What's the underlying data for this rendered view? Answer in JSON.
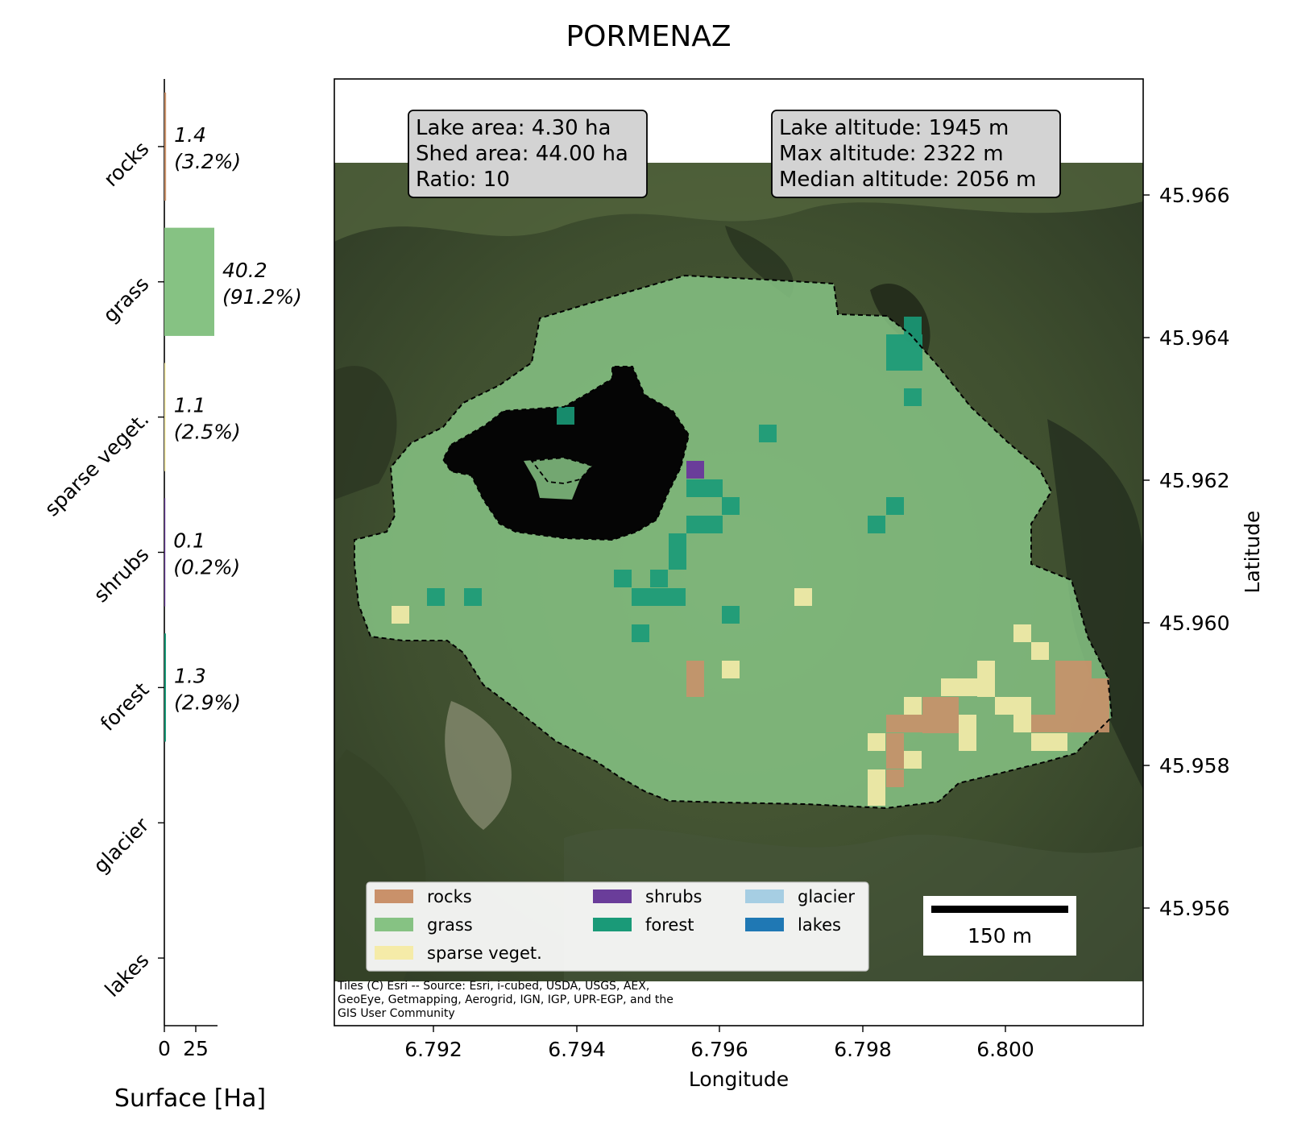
{
  "title": "PORMENAZ",
  "bar_panel": {
    "xlabel": "Surface [Ha]",
    "xticks": [
      "0",
      "25"
    ],
    "categories": [
      "rocks",
      "grass",
      "sparse veget.",
      "shrubs",
      "forest",
      "glacier",
      "lakes"
    ],
    "value_labels": [
      {
        "value": "1.4",
        "pct": "(3.2%)"
      },
      {
        "value": "40.2",
        "pct": "(91.2%)"
      },
      {
        "value": "1.1",
        "pct": "(2.5%)"
      },
      {
        "value": "0.1",
        "pct": "(0.2%)"
      },
      {
        "value": "1.3",
        "pct": "(2.9%)"
      },
      {
        "value": "",
        "pct": ""
      },
      {
        "value": "",
        "pct": ""
      }
    ]
  },
  "chart_data": {
    "type": "bar",
    "orientation": "horizontal",
    "categories": [
      "rocks",
      "grass",
      "sparse veget.",
      "shrubs",
      "forest",
      "glacier",
      "lakes"
    ],
    "values": [
      1.4,
      40.2,
      1.1,
      0.1,
      1.3,
      0,
      0
    ],
    "percentages": [
      3.2,
      91.2,
      2.5,
      0.2,
      2.9,
      0,
      0
    ],
    "colors": [
      "#c9916a",
      "#86c283",
      "#f5eba8",
      "#6a3d9a",
      "#1a9a78",
      "#a6cee3",
      "#1f78b4"
    ],
    "xlabel": "Surface [Ha]",
    "xlim": [
      0,
      40.2
    ]
  },
  "map": {
    "xlabel": "Longitude",
    "ylabel": "Latitude",
    "lon_ticks": [
      "6.792",
      "6.794",
      "6.796",
      "6.798",
      "6.800"
    ],
    "lat_ticks": [
      "45.966",
      "45.964",
      "45.962",
      "45.960",
      "45.958",
      "45.956"
    ],
    "info_left": [
      "Lake area: 4.30 ha",
      "Shed area: 44.00 ha",
      "Ratio: 10"
    ],
    "info_right": [
      "Lake altitude: 1945 m",
      "Max altitude: 2322 m",
      "Median altitude: 2056 m"
    ],
    "scalebar": "150 m",
    "attribution": [
      "Tiles (C) Esri -- Source: Esri, i-cubed, USDA, USGS, AEX,",
      "GeoEye, Getmapping, Aerogrid, IGN, IGP, UPR-EGP, and the",
      "GIS User Community"
    ],
    "legend": [
      {
        "label": "rocks",
        "color": "#c9916a"
      },
      {
        "label": "grass",
        "color": "#86c283"
      },
      {
        "label": "sparse veget.",
        "color": "#f5eba8"
      },
      {
        "label": "shrubs",
        "color": "#6a3d9a"
      },
      {
        "label": "forest",
        "color": "#1a9a78"
      },
      {
        "label": "glacier",
        "color": "#a6cee3"
      },
      {
        "label": "lakes",
        "color": "#1f78b4"
      }
    ]
  }
}
